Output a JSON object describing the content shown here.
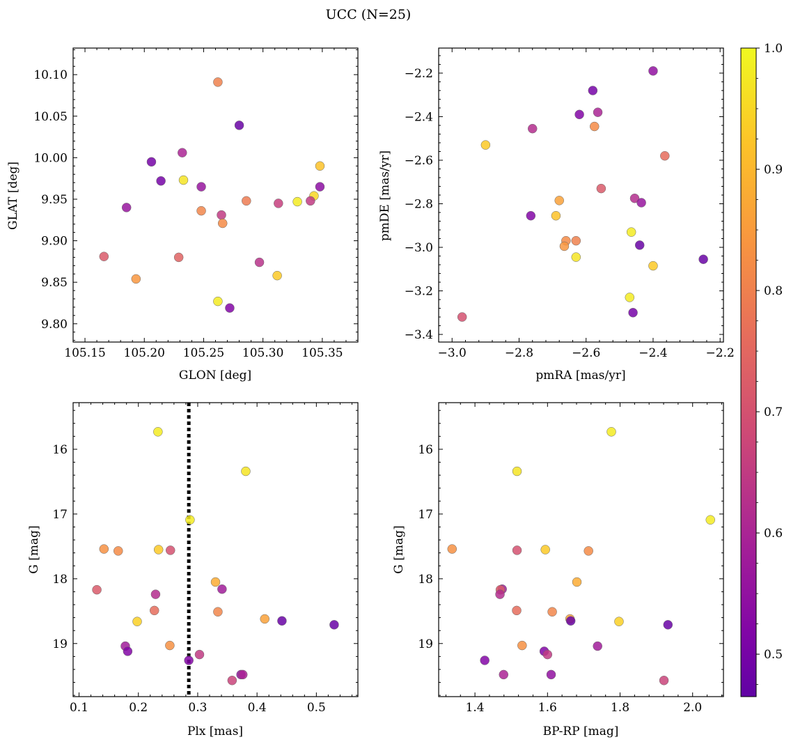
{
  "figure": {
    "title": "UCC (N=25)"
  },
  "colorbar": {
    "min": 0.465,
    "max": 1.0,
    "ticks": [
      "0.5",
      "0.6",
      "0.7",
      "0.8",
      "0.9",
      "1.0"
    ],
    "colormap": "plasma"
  },
  "chart_data": [
    {
      "type": "scatter",
      "xlabel": "GLON [deg]",
      "ylabel": "GLAT [deg]",
      "xlim": [
        105.14,
        105.38
      ],
      "ylim": [
        9.778,
        10.132
      ],
      "xticks": [
        "105.15",
        "105.20",
        "105.25",
        "105.30",
        "105.35"
      ],
      "yticks": [
        "9.80",
        "9.85",
        "9.90",
        "9.95",
        "10.00",
        "10.05",
        "10.10"
      ],
      "x": [
        105.262,
        105.28,
        105.206,
        105.232,
        105.214,
        105.348,
        105.233,
        105.248,
        105.343,
        105.348,
        105.185,
        105.248,
        105.265,
        105.266,
        105.286,
        105.313,
        105.329,
        105.34,
        105.166,
        105.229,
        105.297,
        105.193,
        105.312,
        105.262,
        105.272
      ],
      "y": [
        10.091,
        10.039,
        9.995,
        10.006,
        9.972,
        9.99,
        9.973,
        9.965,
        9.954,
        9.965,
        9.94,
        9.936,
        9.931,
        9.921,
        9.948,
        9.945,
        9.947,
        9.948,
        9.881,
        9.88,
        9.874,
        9.854,
        9.858,
        9.827,
        9.819
      ],
      "c": [
        0.8,
        0.48,
        0.5,
        0.6,
        0.5,
        0.92,
        0.97,
        0.56,
        0.95,
        0.54,
        0.56,
        0.81,
        0.65,
        0.82,
        0.79,
        0.66,
        0.98,
        0.65,
        0.72,
        0.74,
        0.63,
        0.84,
        0.93,
        0.98,
        0.52
      ]
    },
    {
      "type": "scatter",
      "xlabel": "pmRA [mas/yr]",
      "ylabel": "pmDE [mas/yr]",
      "xlim": [
        -3.04,
        -2.19
      ],
      "ylim": [
        -3.435,
        -2.085
      ],
      "xticks": [
        "−3.0",
        "−2.8",
        "−2.6",
        "−2.4",
        "−2.2"
      ],
      "yticks": [
        "−3.4",
        "−3.2",
        "−3.0",
        "−2.8",
        "−2.6",
        "−2.4",
        "−2.2"
      ],
      "x": [
        -2.4,
        -2.58,
        -2.62,
        -2.565,
        -2.76,
        -2.575,
        -2.9,
        -2.365,
        -2.555,
        -2.455,
        -2.435,
        -2.68,
        -2.765,
        -2.69,
        -2.66,
        -2.63,
        -2.665,
        -2.465,
        -2.44,
        -2.63,
        -2.4,
        -2.25,
        -2.47,
        -2.46,
        -2.97
      ],
      "y": [
        -2.19,
        -2.28,
        -2.39,
        -2.38,
        -2.455,
        -2.445,
        -2.53,
        -2.58,
        -2.73,
        -2.775,
        -2.795,
        -2.785,
        -2.855,
        -2.855,
        -2.97,
        -2.97,
        -2.995,
        -2.93,
        -2.99,
        -3.045,
        -3.085,
        -3.055,
        -3.23,
        -3.3,
        -3.32
      ],
      "c": [
        0.55,
        0.5,
        0.52,
        0.6,
        0.62,
        0.82,
        0.93,
        0.76,
        0.72,
        0.62,
        0.56,
        0.86,
        0.52,
        0.92,
        0.82,
        0.8,
        0.84,
        0.98,
        0.48,
        0.97,
        0.93,
        0.48,
        0.98,
        0.5,
        0.7
      ]
    },
    {
      "type": "scatter",
      "xlabel": "Plx [mas]",
      "ylabel": "G [mag]",
      "xlim": [
        0.09,
        0.57
      ],
      "ylim": [
        19.82,
        15.28
      ],
      "invert_y": true,
      "xticks": [
        "0.1",
        "0.2",
        "0.3",
        "0.4",
        "0.5"
      ],
      "yticks": [
        "16",
        "17",
        "18",
        "19"
      ],
      "vline": {
        "x": 0.285,
        "style": "dotted",
        "color": "#000000"
      },
      "x": [
        0.233,
        0.381,
        0.287,
        0.142,
        0.166,
        0.234,
        0.254,
        0.33,
        0.341,
        0.13,
        0.198,
        0.229,
        0.227,
        0.334,
        0.413,
        0.442,
        0.53,
        0.178,
        0.182,
        0.253,
        0.285,
        0.303,
        0.358,
        0.373,
        0.376
      ],
      "y": [
        15.73,
        16.34,
        17.09,
        17.54,
        17.57,
        17.55,
        17.56,
        18.05,
        18.16,
        18.17,
        18.66,
        18.24,
        18.49,
        18.51,
        18.62,
        18.65,
        18.71,
        19.04,
        19.12,
        19.03,
        19.26,
        19.17,
        19.57,
        19.48,
        19.48
      ],
      "c": [
        0.98,
        0.97,
        0.98,
        0.83,
        0.82,
        0.93,
        0.7,
        0.88,
        0.58,
        0.72,
        0.94,
        0.62,
        0.76,
        0.81,
        0.86,
        0.48,
        0.48,
        0.58,
        0.52,
        0.83,
        0.52,
        0.65,
        0.67,
        0.55,
        0.6
      ]
    },
    {
      "type": "scatter",
      "xlabel": "BP-RP [mag]",
      "ylabel": "G [mag]",
      "xlim": [
        1.3,
        2.085
      ],
      "ylim": [
        19.82,
        15.28
      ],
      "invert_y": true,
      "xticks": [
        "1.4",
        "1.6",
        "1.8",
        "2.0"
      ],
      "yticks": [
        "16",
        "17",
        "18",
        "19"
      ],
      "x": [
        1.776,
        1.516,
        2.049,
        1.337,
        1.713,
        1.594,
        1.516,
        1.681,
        1.475,
        1.47,
        1.797,
        1.469,
        1.515,
        1.613,
        1.662,
        1.664,
        1.932,
        1.738,
        1.591,
        1.53,
        1.427,
        1.6,
        1.921,
        1.61,
        1.479
      ],
      "y": [
        15.73,
        16.34,
        17.09,
        17.54,
        17.57,
        17.55,
        17.56,
        18.05,
        18.16,
        18.17,
        18.66,
        18.24,
        18.49,
        18.51,
        18.62,
        18.65,
        18.71,
        19.04,
        19.12,
        19.03,
        19.26,
        19.17,
        19.57,
        19.48,
        19.48
      ],
      "c": [
        0.98,
        0.97,
        0.98,
        0.83,
        0.82,
        0.93,
        0.7,
        0.88,
        0.58,
        0.72,
        0.94,
        0.62,
        0.76,
        0.81,
        0.86,
        0.48,
        0.48,
        0.58,
        0.52,
        0.83,
        0.52,
        0.65,
        0.67,
        0.55,
        0.6
      ]
    }
  ]
}
